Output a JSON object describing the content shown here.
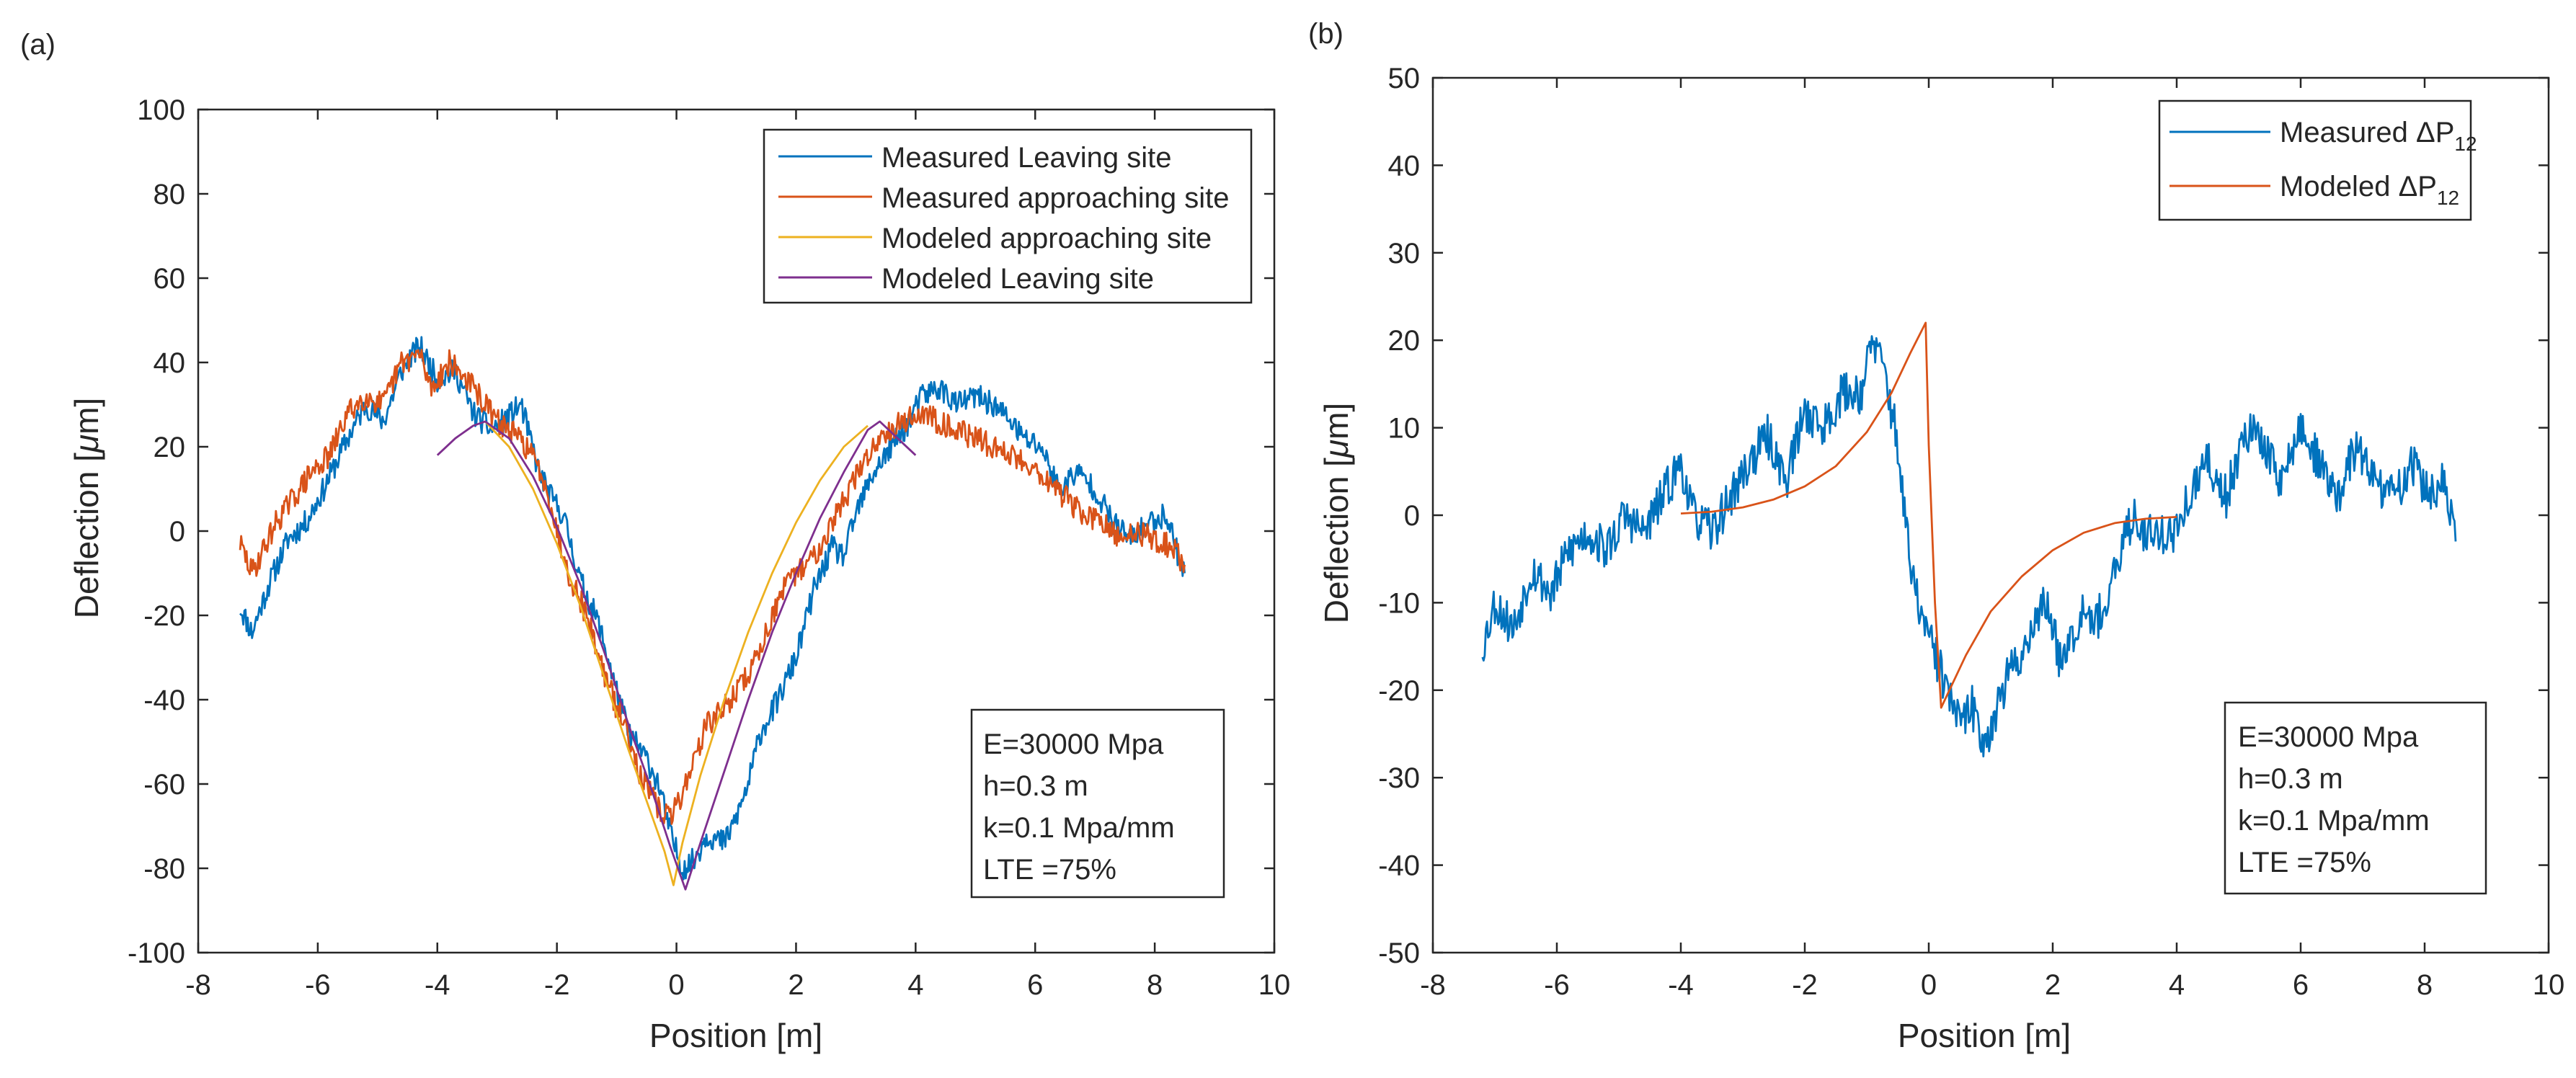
{
  "chart_data": [
    {
      "type": "line",
      "panel_label": "(a)",
      "xlabel": "Position [m]",
      "ylabel_prefix": "Deflection [",
      "ylabel_mu": "μ",
      "ylabel_suffix": "m]",
      "xlim": [
        -8,
        10
      ],
      "ylim": [
        -100,
        100
      ],
      "xticks": [
        -8,
        -6,
        -4,
        -2,
        0,
        2,
        4,
        6,
        8,
        10
      ],
      "yticks": [
        -100,
        -80,
        -60,
        -40,
        -20,
        0,
        20,
        40,
        60,
        80,
        100
      ],
      "legend_position": "top-right",
      "series": [
        {
          "name": "Measured Leaving site",
          "color": "#0072BD",
          "noise": 3,
          "seed": 11,
          "knots": [
            [
              -7.3,
              -18
            ],
            [
              -7.1,
              -24
            ],
            [
              -6.8,
              -12
            ],
            [
              -6.5,
              -2
            ],
            [
              -6.2,
              2
            ],
            [
              -5.9,
              10
            ],
            [
              -5.5,
              22
            ],
            [
              -5.2,
              30
            ],
            [
              -4.9,
              26
            ],
            [
              -4.6,
              38
            ],
            [
              -4.3,
              44
            ],
            [
              -4.0,
              36
            ],
            [
              -3.7,
              38
            ],
            [
              -3.4,
              28
            ],
            [
              -3.1,
              24
            ],
            [
              -2.9,
              26
            ],
            [
              -2.6,
              30
            ],
            [
              -2.3,
              14
            ],
            [
              -2.1,
              8
            ],
            [
              -1.9,
              4
            ],
            [
              -1.6,
              -12
            ],
            [
              -1.3,
              -22
            ],
            [
              -1.0,
              -38
            ],
            [
              -0.8,
              -48
            ],
            [
              -0.5,
              -54
            ],
            [
              -0.3,
              -60
            ],
            [
              -0.1,
              -72
            ],
            [
              0.1,
              -80
            ],
            [
              0.3,
              -78
            ],
            [
              0.5,
              -72
            ],
            [
              0.8,
              -74
            ],
            [
              1.0,
              -68
            ],
            [
              1.2,
              -60
            ],
            [
              1.4,
              -48
            ],
            [
              1.7,
              -40
            ],
            [
              2.0,
              -30
            ],
            [
              2.3,
              -14
            ],
            [
              2.6,
              -4
            ],
            [
              2.8,
              -6
            ],
            [
              3.0,
              4
            ],
            [
              3.3,
              14
            ],
            [
              3.6,
              20
            ],
            [
              3.9,
              26
            ],
            [
              4.1,
              32
            ],
            [
              4.4,
              34
            ],
            [
              4.7,
              30
            ],
            [
              5.0,
              32
            ],
            [
              5.3,
              30
            ],
            [
              5.6,
              26
            ],
            [
              5.8,
              22
            ],
            [
              6.1,
              20
            ],
            [
              6.4,
              10
            ],
            [
              6.7,
              14
            ],
            [
              7.0,
              10
            ],
            [
              7.3,
              2
            ],
            [
              7.6,
              -2
            ],
            [
              7.9,
              2
            ],
            [
              8.2,
              4
            ],
            [
              8.4,
              -6
            ],
            [
              8.5,
              -10
            ]
          ]
        },
        {
          "name": "Measured approaching site",
          "color": "#D95319",
          "noise": 3,
          "seed": 29,
          "knots": [
            [
              -7.3,
              -3
            ],
            [
              -7.1,
              -10
            ],
            [
              -6.9,
              -4
            ],
            [
              -6.7,
              2
            ],
            [
              -6.4,
              8
            ],
            [
              -6.1,
              14
            ],
            [
              -5.8,
              18
            ],
            [
              -5.5,
              28
            ],
            [
              -5.2,
              32
            ],
            [
              -4.9,
              30
            ],
            [
              -4.6,
              40
            ],
            [
              -4.3,
              42
            ],
            [
              -4.1,
              34
            ],
            [
              -3.8,
              40
            ],
            [
              -3.5,
              36
            ],
            [
              -3.2,
              30
            ],
            [
              -3.0,
              26
            ],
            [
              -2.8,
              24
            ],
            [
              -2.5,
              20
            ],
            [
              -2.2,
              12
            ],
            [
              -2.0,
              0
            ],
            [
              -1.8,
              -10
            ],
            [
              -1.5,
              -20
            ],
            [
              -1.2,
              -34
            ],
            [
              -1.0,
              -42
            ],
            [
              -0.8,
              -48
            ],
            [
              -0.6,
              -58
            ],
            [
              -0.3,
              -66
            ],
            [
              -0.1,
              -68
            ],
            [
              0.1,
              -62
            ],
            [
              0.3,
              -54
            ],
            [
              0.5,
              -46
            ],
            [
              0.8,
              -42
            ],
            [
              1.0,
              -38
            ],
            [
              1.2,
              -34
            ],
            [
              1.4,
              -28
            ],
            [
              1.6,
              -20
            ],
            [
              1.8,
              -14
            ],
            [
              2.0,
              -10
            ],
            [
              2.3,
              -6
            ],
            [
              2.6,
              2
            ],
            [
              2.9,
              10
            ],
            [
              3.2,
              18
            ],
            [
              3.5,
              24
            ],
            [
              3.8,
              26
            ],
            [
              4.1,
              28
            ],
            [
              4.4,
              26
            ],
            [
              4.7,
              24
            ],
            [
              5.0,
              22
            ],
            [
              5.3,
              20
            ],
            [
              5.6,
              18
            ],
            [
              5.9,
              16
            ],
            [
              6.2,
              12
            ],
            [
              6.5,
              8
            ],
            [
              6.8,
              4
            ],
            [
              7.1,
              2
            ],
            [
              7.4,
              -2
            ],
            [
              7.7,
              0
            ],
            [
              8.0,
              -2
            ],
            [
              8.3,
              -4
            ],
            [
              8.5,
              -8
            ]
          ]
        },
        {
          "name": "Modeled approaching site",
          "color": "#EDB120",
          "noise": 0,
          "seed": 0,
          "knots": [
            [
              -3.2,
              26
            ],
            [
              -2.8,
              20
            ],
            [
              -2.4,
              10
            ],
            [
              -2.0,
              -3
            ],
            [
              -1.6,
              -18
            ],
            [
              -1.2,
              -35
            ],
            [
              -0.8,
              -52
            ],
            [
              -0.4,
              -68
            ],
            [
              -0.2,
              -76
            ],
            [
              -0.05,
              -84
            ],
            [
              0.1,
              -74
            ],
            [
              0.4,
              -58
            ],
            [
              0.8,
              -40
            ],
            [
              1.2,
              -24
            ],
            [
              1.6,
              -10
            ],
            [
              2.0,
              2
            ],
            [
              2.4,
              12
            ],
            [
              2.8,
              20
            ],
            [
              3.2,
              25
            ]
          ]
        },
        {
          "name": "Modeled Leaving site",
          "color": "#7E2F8E",
          "noise": 0,
          "seed": 0,
          "knots": [
            [
              -4.0,
              18
            ],
            [
              -3.7,
              22
            ],
            [
              -3.4,
              25
            ],
            [
              -3.2,
              26
            ],
            [
              -2.8,
              22
            ],
            [
              -2.4,
              13
            ],
            [
              -2.0,
              1
            ],
            [
              -1.6,
              -13
            ],
            [
              -1.2,
              -29
            ],
            [
              -0.8,
              -46
            ],
            [
              -0.4,
              -62
            ],
            [
              -0.1,
              -75
            ],
            [
              0.15,
              -85
            ],
            [
              0.4,
              -74
            ],
            [
              0.8,
              -57
            ],
            [
              1.2,
              -40
            ],
            [
              1.6,
              -24
            ],
            [
              2.0,
              -10
            ],
            [
              2.4,
              3
            ],
            [
              2.8,
              14
            ],
            [
              3.2,
              24
            ],
            [
              3.4,
              26
            ],
            [
              3.7,
              22
            ],
            [
              4.0,
              18
            ]
          ]
        }
      ],
      "annotation": [
        "E=30000 Mpa",
        "h=0.3 m",
        "k=0.1 Mpa/mm",
        "LTE =75%"
      ]
    },
    {
      "type": "line",
      "panel_label": "(b)",
      "xlabel": "Position [m]",
      "ylabel_prefix": "Deflection [",
      "ylabel_mu": "μ",
      "ylabel_suffix": "m]",
      "xlim": [
        -8,
        10
      ],
      "ylim": [
        -50,
        50
      ],
      "xticks": [
        -8,
        -6,
        -4,
        -2,
        0,
        2,
        4,
        6,
        8,
        10
      ],
      "yticks": [
        -50,
        -40,
        -30,
        -20,
        -10,
        0,
        10,
        20,
        30,
        40,
        50
      ],
      "legend_position": "top-right",
      "series": [
        {
          "name_prefix": "Measured ",
          "name_delta": "Δ",
          "name_main": "P",
          "name_sub": "12",
          "color": "#0072BD",
          "noise": 2.5,
          "seed": 53,
          "knots": [
            [
              -7.2,
              -15
            ],
            [
              -7.0,
              -10
            ],
            [
              -6.7,
              -13
            ],
            [
              -6.4,
              -6
            ],
            [
              -6.1,
              -9
            ],
            [
              -5.8,
              -4
            ],
            [
              -5.5,
              -2
            ],
            [
              -5.2,
              -4
            ],
            [
              -4.9,
              0
            ],
            [
              -4.6,
              -2
            ],
            [
              -4.3,
              2
            ],
            [
              -4.0,
              6
            ],
            [
              -3.8,
              0
            ],
            [
              -3.5,
              -2
            ],
            [
              -3.2,
              2
            ],
            [
              -2.9,
              6
            ],
            [
              -2.6,
              9
            ],
            [
              -2.3,
              4
            ],
            [
              -2.0,
              12
            ],
            [
              -1.7,
              10
            ],
            [
              -1.4,
              14
            ],
            [
              -1.1,
              14
            ],
            [
              -0.9,
              20
            ],
            [
              -0.7,
              16
            ],
            [
              -0.5,
              8
            ],
            [
              -0.3,
              -6
            ],
            [
              -0.1,
              -12
            ],
            [
              0.1,
              -16
            ],
            [
              0.3,
              -20
            ],
            [
              0.5,
              -24
            ],
            [
              0.7,
              -22
            ],
            [
              0.9,
              -26
            ],
            [
              1.1,
              -22
            ],
            [
              1.3,
              -18
            ],
            [
              1.5,
              -16
            ],
            [
              1.7,
              -12
            ],
            [
              1.9,
              -10
            ],
            [
              2.1,
              -16
            ],
            [
              2.3,
              -14
            ],
            [
              2.5,
              -10
            ],
            [
              2.7,
              -12
            ],
            [
              2.9,
              -10
            ],
            [
              3.1,
              -4
            ],
            [
              3.3,
              0
            ],
            [
              3.5,
              -2
            ],
            [
              3.8,
              -2
            ],
            [
              4.0,
              -2
            ],
            [
              4.2,
              2
            ],
            [
              4.5,
              6
            ],
            [
              4.8,
              2
            ],
            [
              5.1,
              10
            ],
            [
              5.4,
              8
            ],
            [
              5.7,
              4
            ],
            [
              6.0,
              10
            ],
            [
              6.3,
              6
            ],
            [
              6.6,
              2
            ],
            [
              6.9,
              8
            ],
            [
              7.2,
              4
            ],
            [
              7.5,
              2
            ],
            [
              7.8,
              6
            ],
            [
              8.1,
              2
            ],
            [
              8.3,
              4
            ],
            [
              8.5,
              -3
            ]
          ]
        },
        {
          "name_prefix": "Modeled ",
          "name_delta": "Δ",
          "name_main": "P",
          "name_sub": "12",
          "color": "#D95319",
          "noise": 0,
          "seed": 0,
          "knots": [
            [
              -4.0,
              0.2
            ],
            [
              -3.5,
              0.4
            ],
            [
              -3.0,
              0.9
            ],
            [
              -2.5,
              1.8
            ],
            [
              -2.0,
              3.3
            ],
            [
              -1.5,
              5.6
            ],
            [
              -1.0,
              9.5
            ],
            [
              -0.6,
              14
            ],
            [
              -0.3,
              18.5
            ],
            [
              -0.05,
              22
            ],
            [
              0.0,
              8
            ],
            [
              0.1,
              -10
            ],
            [
              0.2,
              -22
            ],
            [
              0.6,
              -16
            ],
            [
              1.0,
              -11
            ],
            [
              1.5,
              -7
            ],
            [
              2.0,
              -4
            ],
            [
              2.5,
              -2
            ],
            [
              3.0,
              -0.9
            ],
            [
              3.5,
              -0.4
            ],
            [
              4.0,
              -0.2
            ]
          ]
        }
      ],
      "annotation": [
        "E=30000 Mpa",
        "h=0.3 m",
        "k=0.1 Mpa/mm",
        "LTE =75%"
      ]
    }
  ]
}
